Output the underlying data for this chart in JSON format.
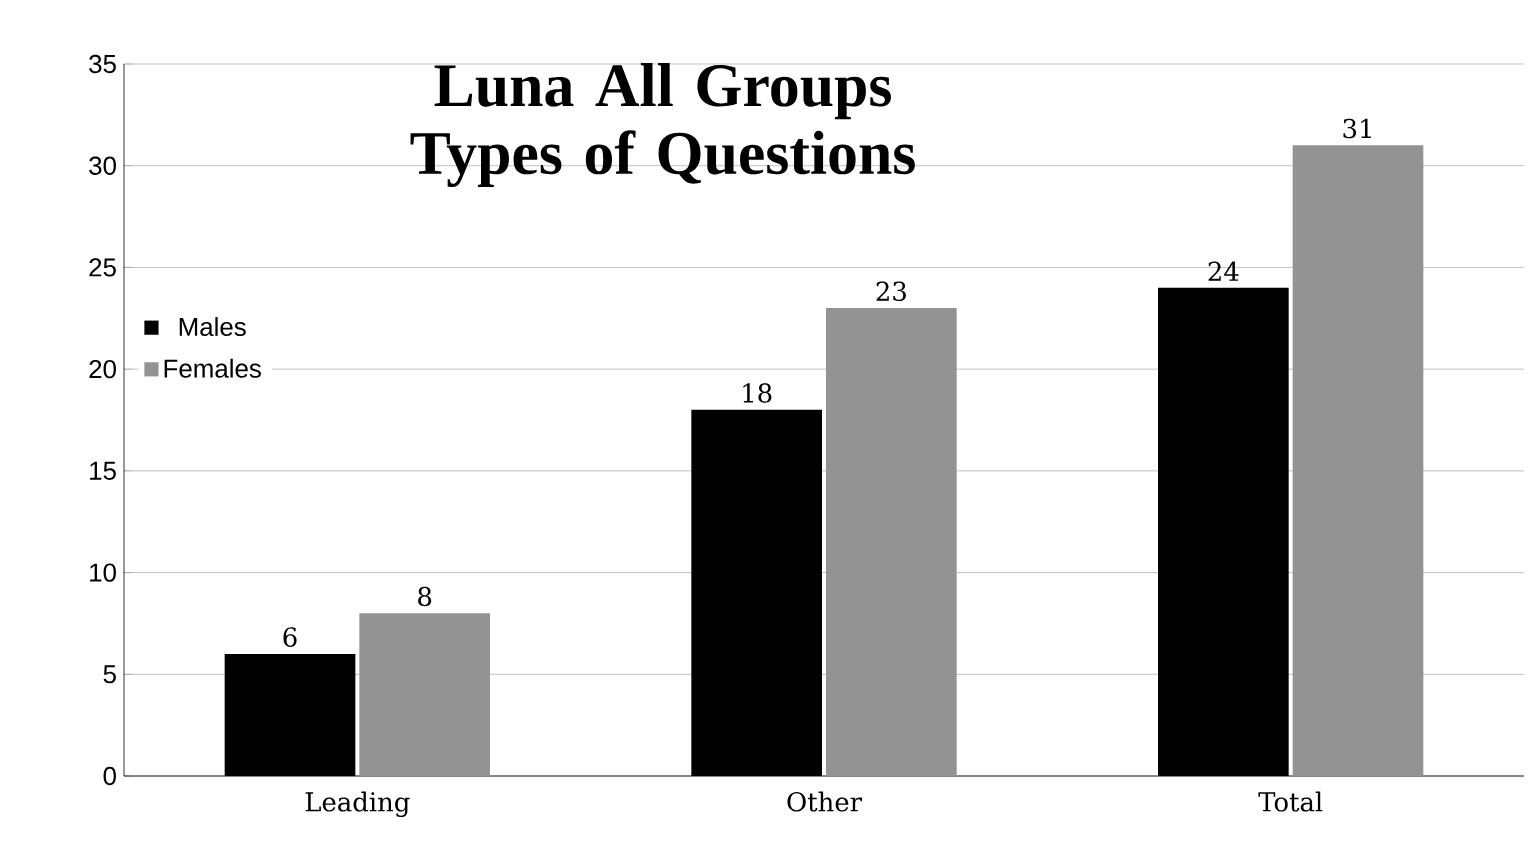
{
  "chart_data": {
    "type": "bar",
    "title": "Luna All Groups Types of Questions",
    "categories": [
      "Leading",
      "Other",
      "Total"
    ],
    "series": [
      {
        "name": "Males",
        "color": "#000000",
        "values": [
          6,
          18,
          24
        ]
      },
      {
        "name": "Females",
        "color": "#939393",
        "values": [
          8,
          23,
          31
        ]
      }
    ],
    "ylim": [
      0,
      35
    ],
    "yticks": [
      0,
      5,
      10,
      15,
      20,
      25,
      30,
      35
    ],
    "grid": "y",
    "legend": "left",
    "data_labels": true
  }
}
